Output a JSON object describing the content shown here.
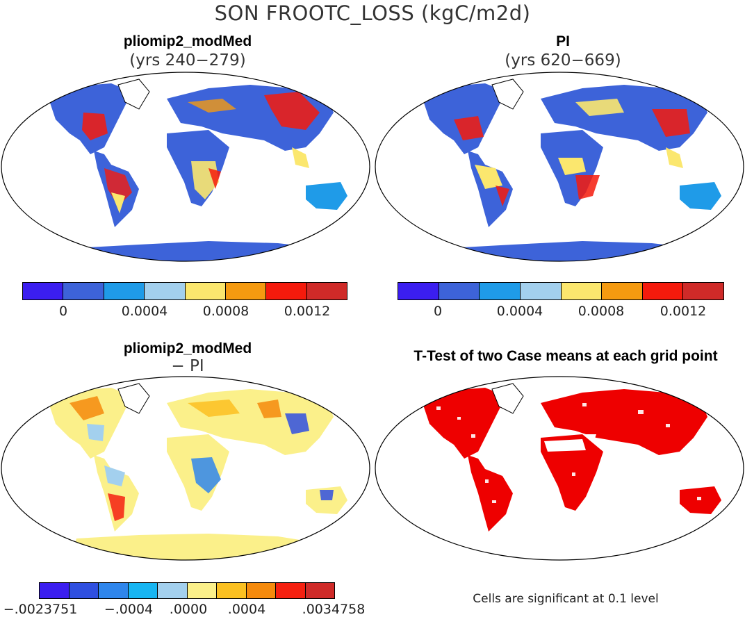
{
  "figure": {
    "title": "SON FROOTC_LOSS (kgC/m2d)"
  },
  "panels": {
    "top_left": {
      "title": "pliomip2_modMed",
      "subtitle": "(yrs 240−279)"
    },
    "top_right": {
      "title": "PI",
      "subtitle": "(yrs 620−669)"
    },
    "bottom_left": {
      "title": "pliomip2_modMed",
      "subtitle": "− PI"
    },
    "bottom_right": {
      "title": "T-Test of two Case means at each grid point",
      "note": "Cells are significant at 0.1 level"
    }
  },
  "colorbar_top": {
    "colors": [
      "#3b1ef0",
      "#3d63d9",
      "#1f9be8",
      "#a3d0ee",
      "#fbe76e",
      "#f59a10",
      "#f51a0c",
      "#cf2a28"
    ],
    "tick_labels": [
      "0",
      "0.0004",
      "0.0008",
      "0.0012"
    ]
  },
  "colorbar_bottom": {
    "colors": [
      "#3b1ef0",
      "#2f4fe0",
      "#2f86ec",
      "#17b5f2",
      "#a3d0ee",
      "#fbf08a",
      "#fbc021",
      "#f58a0c",
      "#f52010",
      "#cf2a28"
    ],
    "tick_labels": [
      "−.0023751",
      "−.0004",
      ".0000",
      ".0004",
      ".0034758"
    ]
  },
  "significance_color": "#ee0000"
}
